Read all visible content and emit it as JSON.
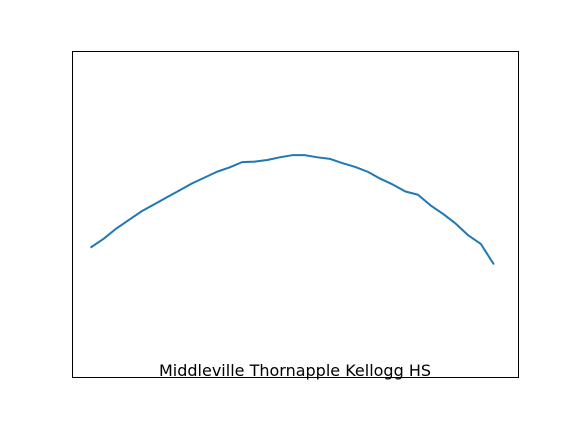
{
  "chart_data": {
    "type": "line",
    "title": "",
    "caption": "Middleville Thornapple Kellogg HS",
    "xlabel": "",
    "ylabel": "",
    "axes_visible": false,
    "grid": false,
    "xlim": [
      -1.5,
      34
    ],
    "ylim": [
      10,
      71
    ],
    "series": [
      {
        "color": "#1f77b4",
        "x": [
          0,
          1,
          2,
          3,
          4,
          5,
          6,
          7,
          8,
          9,
          10,
          11,
          12,
          13,
          14,
          15,
          16,
          17,
          18,
          19,
          20,
          21,
          22,
          23,
          24,
          25,
          26,
          27,
          28,
          29,
          30,
          31,
          32
        ],
        "y": [
          34.4,
          36.0,
          37.9,
          39.5,
          41.1,
          42.4,
          43.7,
          45.0,
          46.3,
          47.4,
          48.5,
          49.3,
          50.3,
          50.4,
          50.7,
          51.2,
          51.6,
          51.6,
          51.2,
          50.9,
          50.1,
          49.4,
          48.5,
          47.2,
          46.1,
          44.8,
          44.2,
          42.2,
          40.6,
          38.8,
          36.6,
          35.0,
          31.3
        ]
      }
    ]
  }
}
